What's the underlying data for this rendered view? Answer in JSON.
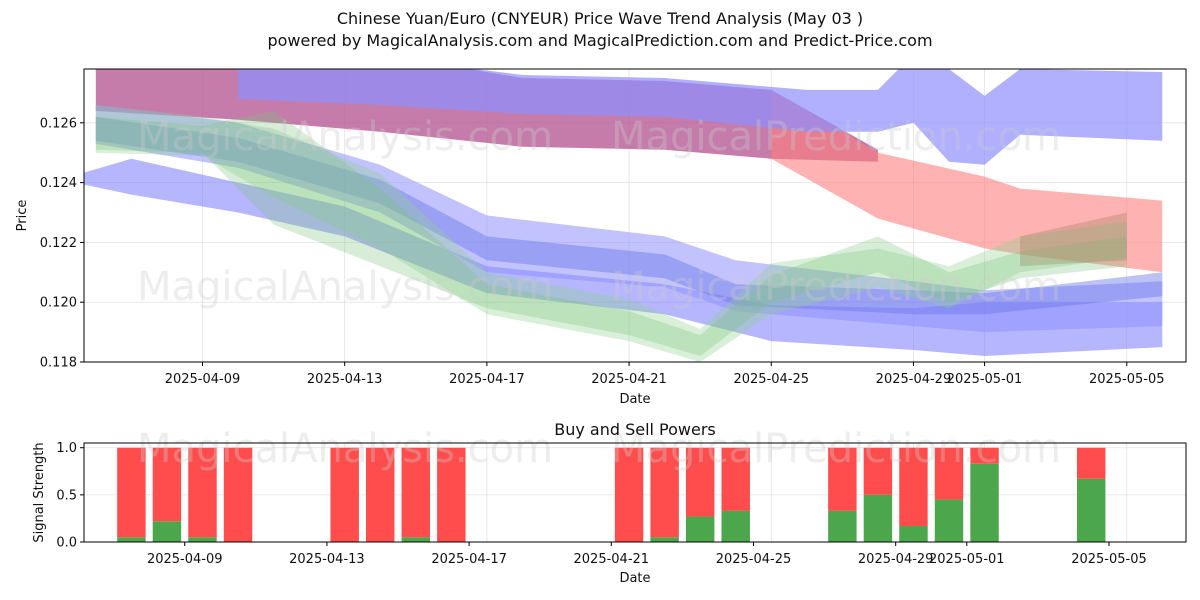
{
  "title": "Chinese Yuan/Euro (CNYEUR) Price Wave Trend Analysis (May 03 )",
  "subtitle": "powered by MagicalAnalysis.com and MagicalPrediction.com and Predict-Price.com",
  "watermarks": [
    "MagicalAnalysis.com",
    "MagicalPrediction.com"
  ],
  "chart_data": [
    {
      "type": "area",
      "xlabel": "Date",
      "ylabel": "Price",
      "ylim": [
        0.118,
        0.1278
      ],
      "xlim": [
        "2025-04-05T16:00",
        "2025-05-06T16:00"
      ],
      "x_ticks": [
        "2025-04-09",
        "2025-04-13",
        "2025-04-17",
        "2025-04-21",
        "2025-04-25",
        "2025-04-29",
        "2025-05-01",
        "2025-05-05"
      ],
      "y_ticks": [
        "0.118",
        "0.120",
        "0.122",
        "0.124",
        "0.126"
      ],
      "grid": true,
      "bands": [
        {
          "color": "#b2508f",
          "opacity": 0.75,
          "x": [
            "2025-04-06",
            "2025-04-10",
            "2025-04-14",
            "2025-04-18",
            "2025-04-22",
            "2025-04-25",
            "2025-04-28"
          ],
          "upper": [
            0.1283,
            0.1283,
            0.1283,
            0.1275,
            0.1274,
            0.1271,
            0.1251
          ],
          "lower": [
            0.1264,
            0.1261,
            0.1257,
            0.1252,
            0.1251,
            0.1248,
            0.1247
          ]
        },
        {
          "color": "#ff7f7f",
          "opacity": 0.6,
          "x": [
            "2025-04-25",
            "2025-04-28",
            "2025-05-01",
            "2025-05-02",
            "2025-05-06"
          ],
          "upper": [
            0.1271,
            0.125,
            0.1242,
            0.1238,
            0.1234
          ],
          "lower": [
            0.1248,
            0.1228,
            0.1218,
            0.1216,
            0.121
          ]
        },
        {
          "color": "#8f8fff",
          "opacity": 0.7,
          "x": [
            "2025-04-10",
            "2025-04-14",
            "2025-04-18",
            "2025-04-22",
            "2025-04-26",
            "2025-04-28",
            "2025-04-29",
            "2025-04-30",
            "2025-05-01",
            "2025-05-02",
            "2025-05-06"
          ],
          "upper": [
            0.1283,
            0.1282,
            0.1276,
            0.1275,
            0.1271,
            0.1271,
            0.1283,
            0.1278,
            0.1269,
            0.1278,
            0.1277
          ],
          "lower": [
            0.1268,
            0.1266,
            0.1263,
            0.1262,
            0.1257,
            0.1257,
            0.126,
            0.1247,
            0.1246,
            0.1256,
            0.1254
          ]
        },
        {
          "color": "#7a7aff",
          "opacity": 0.55,
          "x": [
            "2025-04-05",
            "2025-04-07",
            "2025-04-10",
            "2025-04-13",
            "2025-04-17",
            "2025-04-22",
            "2025-04-25",
            "2025-04-29",
            "2025-05-01",
            "2025-05-06"
          ],
          "upper": [
            0.1241,
            0.1248,
            0.124,
            0.1232,
            0.1212,
            0.1206,
            0.1199,
            0.1198,
            0.12,
            0.12
          ],
          "lower": [
            0.1241,
            0.1236,
            0.123,
            0.1222,
            0.1203,
            0.1196,
            0.1187,
            0.1184,
            0.1182,
            0.1185
          ]
        },
        {
          "color": "#8f8fff",
          "opacity": 0.55,
          "x": [
            "2025-04-06",
            "2025-04-10",
            "2025-04-14",
            "2025-04-17",
            "2025-04-22",
            "2025-04-24",
            "2025-04-29",
            "2025-05-01",
            "2025-05-06"
          ],
          "upper": [
            0.1266,
            0.126,
            0.1246,
            0.1229,
            0.1222,
            0.1214,
            0.1207,
            0.1204,
            0.1207
          ],
          "lower": [
            0.1253,
            0.1245,
            0.123,
            0.121,
            0.1205,
            0.1197,
            0.1192,
            0.119,
            0.1192
          ]
        },
        {
          "color": "#6b78e6",
          "opacity": 0.45,
          "x": [
            "2025-04-06",
            "2025-04-10",
            "2025-04-14",
            "2025-04-17",
            "2025-04-22",
            "2025-04-24",
            "2025-04-29",
            "2025-05-01",
            "2025-05-06"
          ],
          "upper": [
            0.1262,
            0.1255,
            0.1241,
            0.1222,
            0.1216,
            0.1206,
            0.1204,
            0.1203,
            0.121
          ],
          "lower": [
            0.1254,
            0.1247,
            0.1233,
            0.1214,
            0.1208,
            0.1199,
            0.1196,
            0.1196,
            0.1202
          ]
        },
        {
          "color": "#8fd18f",
          "opacity": 0.35,
          "x": [
            "2025-04-06",
            "2025-04-09",
            "2025-04-11",
            "2025-04-14",
            "2025-04-17",
            "2025-04-21",
            "2025-04-23",
            "2025-04-25",
            "2025-04-28",
            "2025-04-30",
            "2025-05-02",
            "2025-05-05"
          ],
          "upper": [
            0.1266,
            0.1262,
            0.1258,
            0.1243,
            0.121,
            0.1201,
            0.1191,
            0.1213,
            0.1218,
            0.1212,
            0.1222,
            0.1227
          ],
          "lower": [
            0.125,
            0.1249,
            0.1235,
            0.1218,
            0.1196,
            0.1187,
            0.118,
            0.1196,
            0.1205,
            0.1198,
            0.121,
            0.1215
          ]
        },
        {
          "color": "#7cc47c",
          "opacity": 0.3,
          "x": [
            "2025-04-06",
            "2025-04-09",
            "2025-04-11",
            "2025-04-14",
            "2025-04-17",
            "2025-04-21",
            "2025-04-23",
            "2025-04-25",
            "2025-04-28",
            "2025-04-30",
            "2025-05-02",
            "2025-05-05"
          ],
          "upper": [
            0.1262,
            0.1259,
            0.1264,
            0.1238,
            0.1206,
            0.1197,
            0.1189,
            0.1209,
            0.1222,
            0.121,
            0.1217,
            0.1222
          ],
          "lower": [
            0.1251,
            0.125,
            0.1226,
            0.1212,
            0.1198,
            0.1189,
            0.1182,
            0.12,
            0.121,
            0.12,
            0.1208,
            0.1212
          ]
        },
        {
          "color": "#a08060",
          "opacity": 0.35,
          "x": [
            "2025-05-02",
            "2025-05-05"
          ],
          "upper": [
            0.1222,
            0.123
          ],
          "lower": [
            0.1212,
            0.1214
          ]
        }
      ]
    },
    {
      "type": "bar",
      "title": "Buy and Sell Powers",
      "xlabel": "Date",
      "ylabel": "Signal Strength",
      "ylim": [
        0,
        1.05
      ],
      "y_ticks": [
        "0.0",
        "0.5",
        "1.0"
      ],
      "x_ticks": [
        "2025-04-09",
        "2025-04-13",
        "2025-04-17",
        "2025-04-21",
        "2025-04-25",
        "2025-04-29",
        "2025-05-01",
        "2025-05-05"
      ],
      "grid": true,
      "buy_color": "#4ca64c",
      "sell_color": "#ff4c4c",
      "categories": [
        "2025-04-07",
        "2025-04-08",
        "2025-04-09",
        "2025-04-10",
        "2025-04-13",
        "2025-04-14",
        "2025-04-15",
        "2025-04-16",
        "2025-04-21",
        "2025-04-22",
        "2025-04-23",
        "2025-04-24",
        "2025-04-27",
        "2025-04-28",
        "2025-04-29",
        "2025-04-30",
        "2025-05-01",
        "2025-05-04"
      ],
      "series": [
        {
          "name": "",
          "values": [
            0.05,
            0.22,
            0.05,
            0.0,
            0.0,
            0.0,
            0.05,
            0.0,
            0.0,
            0.05,
            0.27,
            0.33,
            0.33,
            0.5,
            0.17,
            0.45,
            0.83,
            0.67
          ]
        },
        {
          "name": "",
          "values": [
            0.95,
            0.78,
            0.95,
            1.0,
            1.0,
            1.0,
            0.95,
            1.0,
            1.0,
            0.95,
            0.73,
            0.67,
            0.67,
            0.5,
            0.83,
            0.55,
            0.17,
            0.33
          ]
        }
      ]
    }
  ]
}
